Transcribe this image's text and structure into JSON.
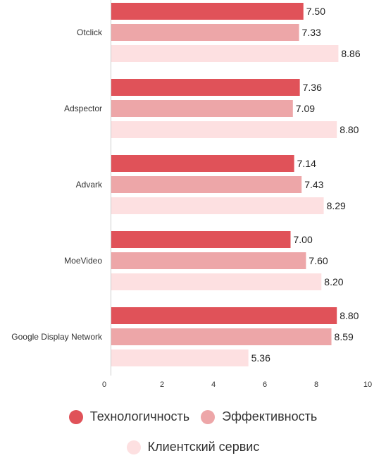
{
  "chart_data": {
    "type": "bar",
    "orientation": "horizontal",
    "categories": [
      "Otclick",
      "Adspector",
      "Advark",
      "MoeVideo",
      "Google Display Network"
    ],
    "series": [
      {
        "name": "Технологичность",
        "color": "#e05259",
        "values": [
          7.5,
          7.36,
          7.14,
          7.0,
          8.8
        ]
      },
      {
        "name": "Эффективность",
        "color": "#eda6a8",
        "values": [
          7.33,
          7.09,
          7.43,
          7.6,
          8.59
        ]
      },
      {
        "name": "Клиентский сервис",
        "color": "#fde0e1",
        "values": [
          8.86,
          8.8,
          8.29,
          8.2,
          5.36
        ]
      }
    ],
    "xlim": [
      0,
      10
    ],
    "xticks": [
      "0",
      "2",
      "4",
      "6",
      "8",
      "10"
    ],
    "data_labels": true,
    "legend_position": "bottom",
    "grid": false
  }
}
